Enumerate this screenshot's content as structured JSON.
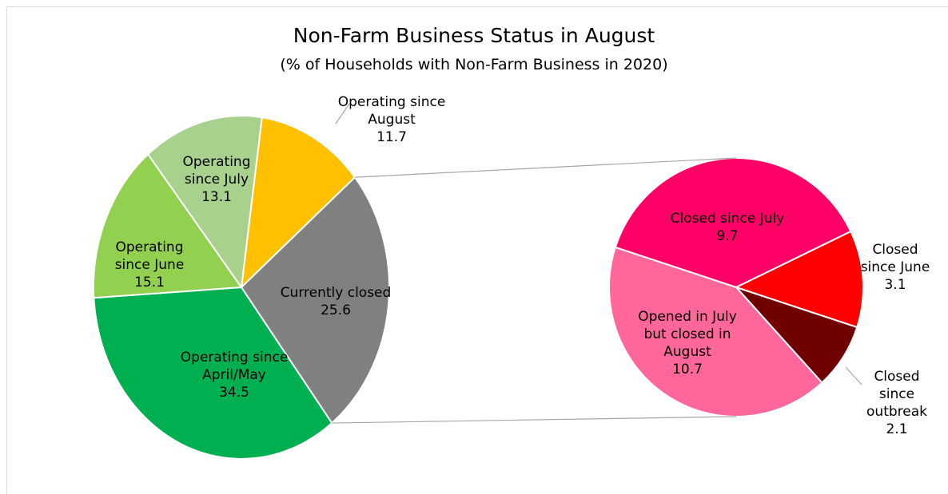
{
  "chart_data": [
    {
      "type": "pie",
      "title": "Non-Farm Business Status in August",
      "subtitle": "(% of Households with Non-Farm Business in 2020)",
      "categories": [
        "Operating since August",
        "Currently closed",
        "Operating since April/May",
        "Operating since June",
        "Operating since July"
      ],
      "values": [
        11.7,
        25.6,
        34.5,
        15.1,
        13.1
      ],
      "colors": [
        "#ffc000",
        "#808080",
        "#00b050",
        "#92d050",
        "#a9d18e"
      ]
    },
    {
      "type": "pie",
      "categories": [
        "Closed since July",
        "Closed since June",
        "Closed since outbreak",
        "Opened in July but closed in August"
      ],
      "values": [
        9.7,
        3.1,
        2.1,
        10.7
      ],
      "colors": [
        "#ff0066",
        "#ff0000",
        "#700000",
        "#ff6699"
      ]
    }
  ]
}
